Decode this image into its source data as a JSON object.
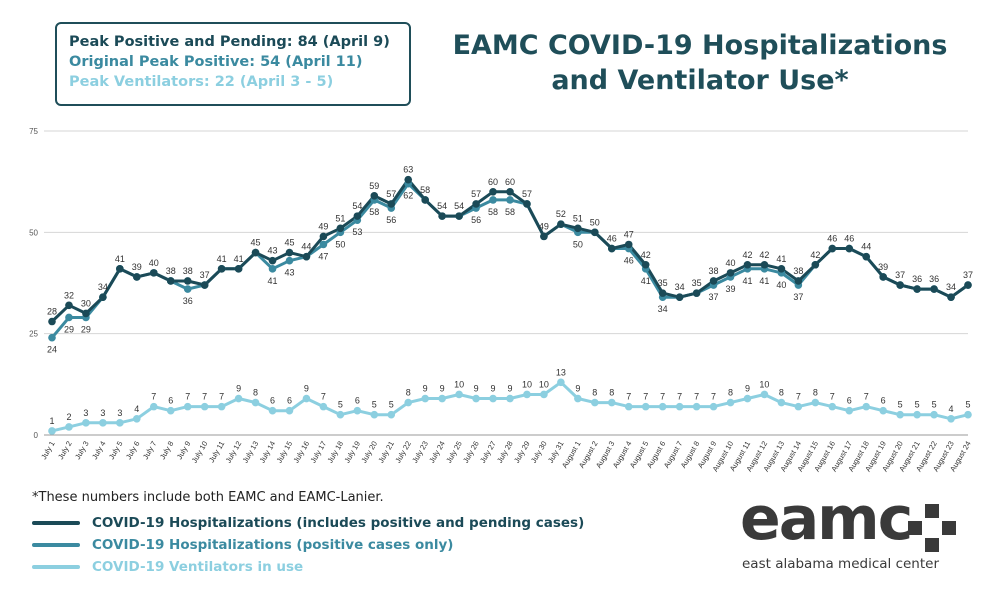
{
  "peaks": {
    "line1": "Peak Positive and Pending: 84 (April 9)",
    "line2": "Original Peak Positive: 54 (April 11)",
    "line3": "Peak Ventilators: 22 (April 3 - 5)"
  },
  "title": {
    "line1": "EAMC COVID-19 Hospitalizations",
    "line2": "and Ventilator Use*"
  },
  "footnote": "*These numbers include both EAMC and EAMC-Lanier.",
  "legend": [
    {
      "label": "COVID-19 Hospitalizations (includes positive and pending cases)",
      "color": "#1b4a57"
    },
    {
      "label": "COVID-19 Hospitalizations (positive cases only)",
      "color": "#3b8aa0"
    },
    {
      "label": "COVID-19 Ventilators in use",
      "color": "#8ccfe0"
    }
  ],
  "logo": {
    "word": "eamc",
    "subtitle": "east alabama medical center"
  },
  "colors": {
    "dark": "#1b4a57",
    "mid": "#3b8aa0",
    "light": "#8ccfe0",
    "peak1": "#1b4a57",
    "peak2": "#3b8aa0",
    "peak3": "#8ccfe0"
  },
  "chart_data": {
    "type": "line",
    "ylim": [
      0,
      75
    ],
    "yticks": [
      0,
      25,
      50,
      75
    ],
    "grid": true,
    "categories": [
      "July 1",
      "July 2",
      "July 3",
      "July 4",
      "July 5",
      "July 6",
      "July 7",
      "July 8",
      "July 9",
      "July 10",
      "July 11",
      "July 12",
      "July 13",
      "July 14",
      "July 15",
      "July 16",
      "July 17",
      "July 18",
      "July 19",
      "July 20",
      "July 21",
      "July 22",
      "July 23",
      "July 24",
      "July 25",
      "July 26",
      "July 27",
      "July 28",
      "July 29",
      "July 30",
      "July 31",
      "August 1",
      "August 2",
      "August 3",
      "August 4",
      "August 5",
      "August 6",
      "August 7",
      "August 8",
      "August 9",
      "August 10",
      "August 11",
      "August 12",
      "August 13",
      "August 14",
      "August 15",
      "August 16",
      "August 17",
      "August 18",
      "August 19",
      "August 20",
      "August 21",
      "August 22",
      "August 23",
      "August 24"
    ],
    "xtick_labels": [
      "July 1",
      "July 2",
      "July 3",
      "July 4",
      "July 5",
      "July 6",
      "July 7",
      "July 8",
      "July 9",
      "July 10",
      "July 11",
      "July 12",
      "July 13",
      "July 14",
      "July 15",
      "July 16",
      "July 17",
      "July 18",
      "July 19",
      "July 20",
      "July 21",
      "July 22",
      "July 23",
      "July 24",
      "July 25",
      "July 26",
      "July 27",
      "July 28",
      "July 29",
      "July 30",
      "July 31",
      "August 1",
      "August 2",
      "August 3",
      "August 4",
      "August 5",
      "August 6",
      "August 7",
      "August 8",
      "August 9",
      "August 10",
      "August 11",
      "August 12",
      "August 13",
      "August 14",
      "August 15",
      "August 16",
      "August 17",
      "August 18",
      "August 19",
      "August 20",
      "August 21",
      "August 22",
      "August 23",
      "August 24"
    ],
    "series": [
      {
        "name": "COVID-19 Hospitalizations (includes positive and pending cases)",
        "values": [
          28,
          32,
          30,
          34,
          41,
          39,
          40,
          38,
          38,
          37,
          41,
          41,
          45,
          43,
          45,
          44,
          49,
          51,
          54,
          59,
          57,
          63,
          58,
          54,
          54,
          57,
          60,
          60,
          57,
          49,
          52,
          51,
          50,
          46,
          47,
          42,
          35,
          34,
          35,
          38,
          40,
          42,
          42,
          41,
          38,
          42,
          46,
          46,
          44,
          39,
          37,
          36,
          36,
          34,
          37
        ]
      },
      {
        "name": "COVID-19 Hospitalizations (positive cases only)",
        "values": [
          24,
          29,
          29,
          34,
          41,
          39,
          40,
          38,
          36,
          37,
          41,
          41,
          45,
          41,
          43,
          44,
          47,
          50,
          53,
          58,
          56,
          62,
          58,
          54,
          54,
          56,
          58,
          58,
          57,
          49,
          52,
          50,
          50,
          46,
          46,
          41,
          34,
          34,
          35,
          37,
          39,
          41,
          41,
          40,
          37,
          42,
          46,
          46,
          44,
          39,
          37,
          36,
          36,
          34,
          37
        ]
      },
      {
        "name": "COVID-19 Ventilators in use",
        "values": [
          1,
          2,
          3,
          3,
          3,
          4,
          7,
          6,
          7,
          7,
          7,
          9,
          8,
          6,
          6,
          9,
          7,
          5,
          6,
          5,
          5,
          8,
          9,
          9,
          10,
          9,
          9,
          9,
          10,
          10,
          13,
          9,
          8,
          8,
          7,
          7,
          7,
          7,
          7,
          7,
          8,
          9,
          10,
          8,
          7,
          8,
          7,
          6,
          7,
          6,
          5,
          5,
          5,
          4,
          5
        ]
      }
    ],
    "data_labels": {
      "dark": [
        "28",
        "32",
        "30",
        "34",
        "41",
        "39",
        "40",
        "38",
        "38",
        "37",
        "41",
        "41",
        "45",
        "43",
        "45",
        "44",
        "49",
        "51",
        "54",
        "59",
        "57",
        "63",
        "58",
        "54",
        "54",
        "57",
        "60",
        "60",
        "57",
        "49",
        "52",
        "51",
        "50",
        "46",
        "47",
        "42",
        "35",
        "34",
        "35",
        "38",
        "40",
        "42",
        "42",
        "41",
        "38",
        "42",
        "46",
        "46",
        "44",
        "39",
        "37",
        "36",
        "36",
        "34",
        "37"
      ],
      "mid": [
        "24",
        "29",
        "29",
        "34",
        "41",
        "39",
        "40",
        "38",
        "36",
        "37",
        "41",
        "41",
        "45",
        "41",
        "43",
        "44",
        "47",
        "50",
        "53",
        "58",
        "56",
        "62",
        "58",
        "54",
        "54",
        "56",
        "58",
        "58",
        "57",
        "49",
        "52",
        "50",
        "50",
        "46",
        "46",
        "41",
        "34",
        "34",
        "35",
        "37",
        "39",
        "41",
        "41",
        "40",
        "37",
        "42",
        "46",
        "46",
        "44",
        "39",
        "37",
        "36",
        "36",
        "34",
        "37"
      ],
      "light": [
        "1",
        "2",
        "3",
        "3",
        "3",
        "4",
        "7",
        "6",
        "7",
        "7",
        "7",
        "9",
        "8",
        "6",
        "6",
        "9",
        "7",
        "5",
        "6",
        "5",
        "5",
        "8",
        "9",
        "9",
        "10",
        "9",
        "9",
        "9",
        "10",
        "10",
        "13",
        "9",
        "8",
        "8",
        "7",
        "7",
        "7",
        "7",
        "7",
        "7",
        "8",
        "9",
        "10",
        "8",
        "7",
        "8",
        "7",
        "6",
        "7",
        "6",
        "5",
        "5",
        "5",
        "4",
        "5"
      ]
    }
  }
}
